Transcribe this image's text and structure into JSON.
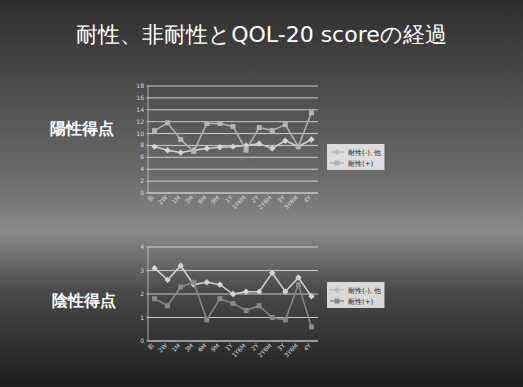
{
  "slide": {
    "title": "耐性、非耐性とQOL-20 scoreの経過"
  },
  "chart_data": [
    {
      "type": "line",
      "title": "陽性得点",
      "categories": [
        "前",
        "2W",
        "1M",
        "3M",
        "6M",
        "9M",
        "1Y",
        "1Y6M",
        "2Y",
        "2Y6M",
        "3Y",
        "3Y6M",
        "4Y"
      ],
      "series": [
        {
          "name": "耐性(-), 他",
          "color": "#d4d4d4",
          "marker": "diamond",
          "values": [
            7.8,
            7.2,
            6.8,
            7.2,
            7.5,
            7.7,
            7.8,
            8.0,
            8.3,
            7.5,
            8.8,
            7.8,
            9.0
          ]
        },
        {
          "name": "耐性(+)",
          "color": "#b4b4b4",
          "marker": "square",
          "values": [
            10.5,
            11.8,
            9.0,
            7.0,
            11.7,
            11.7,
            11.2,
            7.2,
            11.0,
            10.5,
            11.5,
            7.8,
            13.5
          ]
        }
      ],
      "ylim": [
        0,
        18
      ],
      "yticks": [
        0,
        2,
        4,
        6,
        8,
        10,
        12,
        14,
        16,
        18
      ],
      "grid": true,
      "legend": "right"
    },
    {
      "type": "line",
      "title": "陰性得点",
      "categories": [
        "前",
        "2W",
        "1M",
        "3M",
        "6M",
        "9M",
        "1Y",
        "1Y6M",
        "2Y",
        "2Y6M",
        "3Y",
        "3Y6M",
        "4Y"
      ],
      "series": [
        {
          "name": "耐性(-), 他",
          "color": "#d4d4d4",
          "marker": "diamond",
          "values": [
            3.1,
            2.6,
            3.2,
            2.4,
            2.5,
            2.4,
            2.0,
            2.1,
            2.1,
            2.9,
            2.1,
            2.7,
            1.9
          ]
        },
        {
          "name": "耐性(+)",
          "color": "#8a8a8a",
          "marker": "square",
          "values": [
            1.8,
            1.5,
            2.3,
            2.5,
            0.9,
            1.8,
            1.6,
            1.3,
            1.5,
            1.0,
            0.9,
            2.4,
            0.6
          ]
        }
      ],
      "ylim": [
        0,
        4
      ],
      "yticks": [
        0,
        1,
        2,
        3,
        4
      ],
      "grid": true,
      "legend": "right"
    }
  ]
}
